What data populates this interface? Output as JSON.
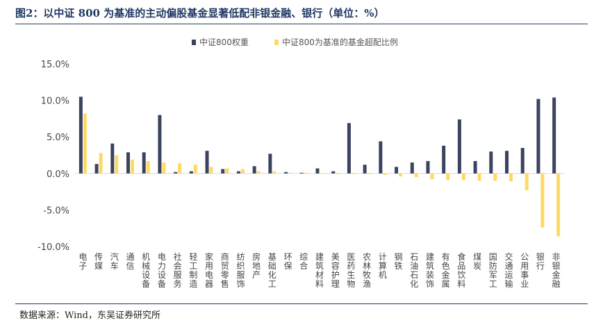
{
  "title": "图2：以中证 800 为基准的主动偏股基金显著低配非银金融、银行（单位：%）",
  "source": "数据来源：Wind，东吴证券研究所",
  "colors": {
    "series1": "#3a4460",
    "series2": "#ffd966",
    "rule": "#1f3864"
  },
  "chart_data": {
    "type": "bar",
    "ylim": [
      -10,
      15
    ],
    "yticks": [
      "15.0%",
      "10.0%",
      "5.0%",
      "0.0%",
      "-5.0%",
      "-10.0%"
    ],
    "legend_position": "top-center",
    "grid": false,
    "categories": [
      "电子",
      "传媒",
      "汽车",
      "通信",
      "机械设备",
      "电力设备",
      "社会服务",
      "轻工制造",
      "家用电器",
      "商贸零售",
      "纺织服饰",
      "房地产",
      "基础化工",
      "环保",
      "综合",
      "建筑材料",
      "美容护理",
      "医药生物",
      "农林牧渔",
      "计算机",
      "钢铁",
      "石油石化",
      "建筑装饰",
      "有色金属",
      "食品饮料",
      "煤炭",
      "国防军工",
      "交通运输",
      "公用事业",
      "银行",
      "非银金融"
    ],
    "series": [
      {
        "name": "中证800权重",
        "values": [
          10.5,
          1.3,
          4.1,
          2.9,
          2.9,
          8.0,
          0.2,
          0.3,
          3.1,
          0.6,
          0.3,
          1.0,
          2.7,
          0.2,
          0.1,
          0.7,
          0.3,
          6.9,
          1.2,
          4.4,
          0.9,
          1.5,
          1.7,
          3.8,
          7.4,
          1.7,
          3.0,
          3.1,
          3.5,
          10.2,
          10.4
        ]
      },
      {
        "name": "中证800为基准的基金超配比例",
        "values": [
          8.2,
          2.8,
          2.5,
          1.9,
          1.7,
          1.5,
          1.4,
          1.2,
          0.9,
          0.7,
          0.6,
          0.3,
          0.3,
          0.1,
          0.1,
          0.0,
          -0.1,
          -0.1,
          -0.1,
          -0.2,
          -0.4,
          -0.5,
          -0.8,
          -0.9,
          -0.9,
          -1.0,
          -1.0,
          -1.1,
          -2.3,
          -7.4,
          -8.6
        ]
      }
    ]
  }
}
